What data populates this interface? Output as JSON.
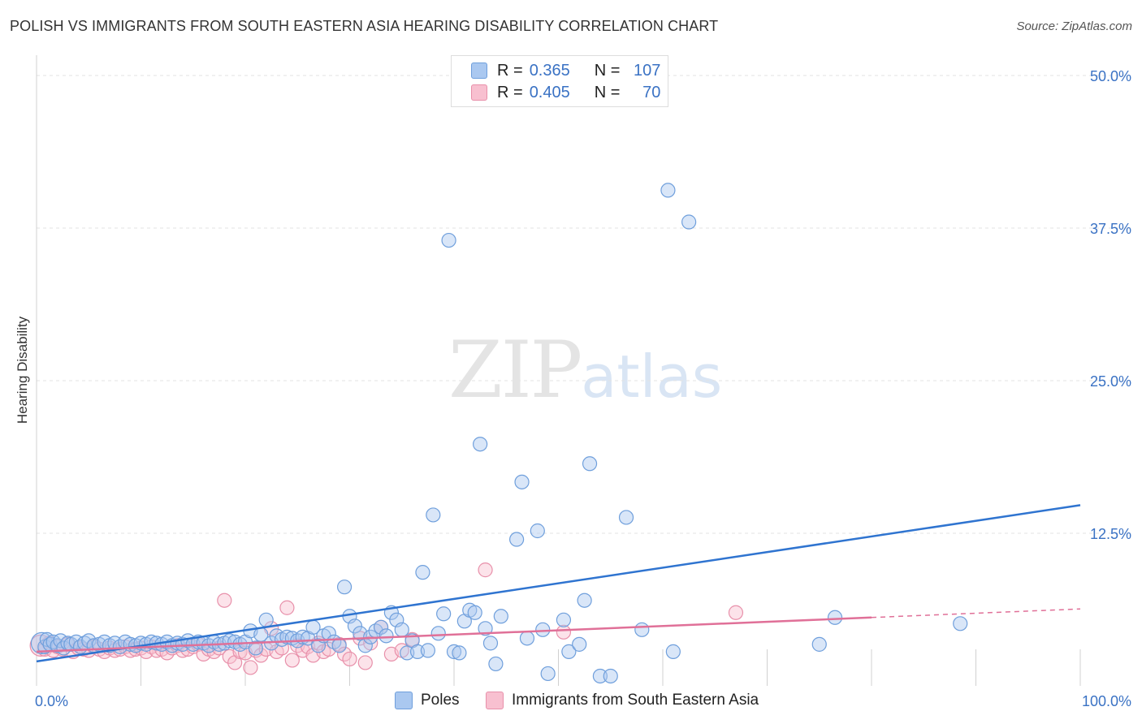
{
  "header": {
    "title": "POLISH VS IMMIGRANTS FROM SOUTH EASTERN ASIA HEARING DISABILITY CORRELATION CHART",
    "source": "Source: ZipAtlas.com"
  },
  "watermark": {
    "zip": "ZIP",
    "atlas": "atlas"
  },
  "legend": {
    "rows": [
      {
        "r_label": "R =",
        "r_value": "0.365",
        "n_label": "N =",
        "n_value": "107",
        "fill": "#aac8f0",
        "stroke": "#6f9fdc"
      },
      {
        "r_label": "R =",
        "r_value": "0.405",
        "n_label": "N =",
        "n_value": "70",
        "fill": "#f8c0d0",
        "stroke": "#e890aa"
      }
    ]
  },
  "colors": {
    "blue_fill": "#aac8f0",
    "blue_stroke": "#6f9fdc",
    "blue_line": "#2f74d0",
    "pink_fill": "#f8c0d0",
    "pink_stroke": "#e890aa",
    "pink_line": "#e07098",
    "grid": "#e3e3e3",
    "tick_label": "#3a72c4"
  },
  "chart_data": {
    "type": "scatter",
    "title": "POLISH VS IMMIGRANTS FROM SOUTH EASTERN ASIA HEARING DISABILITY CORRELATION CHART",
    "xlabel": "",
    "ylabel": "Hearing Disability",
    "xlim": [
      0,
      100
    ],
    "ylim": [
      0,
      51
    ],
    "x_tick_labels": [
      "0.0%",
      "100.0%"
    ],
    "y_ticks": [
      12.5,
      25,
      37.5,
      50
    ],
    "y_tick_labels": [
      "12.5%",
      "25.0%",
      "37.5%",
      "50.0%"
    ],
    "legend_position": "top-center",
    "series": [
      {
        "name": "Poles",
        "trend": {
          "x": [
            0,
            100
          ],
          "y": [
            2.0,
            14.8
          ],
          "dashed_from": null
        },
        "points": [
          [
            0.5,
            3.5
          ],
          [
            0.8,
            3.2
          ],
          [
            1.0,
            3.8
          ],
          [
            1.3,
            3.4
          ],
          [
            1.6,
            3.6
          ],
          [
            2.0,
            3.3
          ],
          [
            2.3,
            3.7
          ],
          [
            2.6,
            3.1
          ],
          [
            3.0,
            3.5
          ],
          [
            3.3,
            3.4
          ],
          [
            3.8,
            3.6
          ],
          [
            4.2,
            3.2
          ],
          [
            4.6,
            3.5
          ],
          [
            5.0,
            3.7
          ],
          [
            5.5,
            3.3
          ],
          [
            6.0,
            3.4
          ],
          [
            6.5,
            3.6
          ],
          [
            7.0,
            3.3
          ],
          [
            7.5,
            3.5
          ],
          [
            8.0,
            3.2
          ],
          [
            8.5,
            3.6
          ],
          [
            9.0,
            3.4
          ],
          [
            9.5,
            3.3
          ],
          [
            10.0,
            3.5
          ],
          [
            10.5,
            3.4
          ],
          [
            11.0,
            3.6
          ],
          [
            11.5,
            3.5
          ],
          [
            12.0,
            3.4
          ],
          [
            12.5,
            3.6
          ],
          [
            13.0,
            3.3
          ],
          [
            13.5,
            3.5
          ],
          [
            14.0,
            3.4
          ],
          [
            14.5,
            3.7
          ],
          [
            15.0,
            3.4
          ],
          [
            15.5,
            3.6
          ],
          [
            16.0,
            3.5
          ],
          [
            16.5,
            3.3
          ],
          [
            17.0,
            3.6
          ],
          [
            17.5,
            3.4
          ],
          [
            18.0,
            3.5
          ],
          [
            18.5,
            3.7
          ],
          [
            19.0,
            3.6
          ],
          [
            19.5,
            3.4
          ],
          [
            20.0,
            3.6
          ],
          [
            20.5,
            4.5
          ],
          [
            21.0,
            3.1
          ],
          [
            21.5,
            4.2
          ],
          [
            22.0,
            5.4
          ],
          [
            22.5,
            3.5
          ],
          [
            23.0,
            4.1
          ],
          [
            23.5,
            3.8
          ],
          [
            24.0,
            4.0
          ],
          [
            24.5,
            3.9
          ],
          [
            25.0,
            3.7
          ],
          [
            25.5,
            4.0
          ],
          [
            26.0,
            3.9
          ],
          [
            26.5,
            4.8
          ],
          [
            27.0,
            3.3
          ],
          [
            27.5,
            4.1
          ],
          [
            28.0,
            4.3
          ],
          [
            28.5,
            3.6
          ],
          [
            29.0,
            3.3
          ],
          [
            29.5,
            8.1
          ],
          [
            30.0,
            5.7
          ],
          [
            30.5,
            4.9
          ],
          [
            31.0,
            4.3
          ],
          [
            31.5,
            3.3
          ],
          [
            32.0,
            4.0
          ],
          [
            32.5,
            4.5
          ],
          [
            33.0,
            4.8
          ],
          [
            33.5,
            4.1
          ],
          [
            34.0,
            6.0
          ],
          [
            34.5,
            5.4
          ],
          [
            35.0,
            4.6
          ],
          [
            35.5,
            2.7
          ],
          [
            36.0,
            3.7
          ],
          [
            36.5,
            2.8
          ],
          [
            37.0,
            9.3
          ],
          [
            37.5,
            2.9
          ],
          [
            38.0,
            14.0
          ],
          [
            38.5,
            4.3
          ],
          [
            39.0,
            5.9
          ],
          [
            39.5,
            36.5
          ],
          [
            40.0,
            2.8
          ],
          [
            40.5,
            2.7
          ],
          [
            41.0,
            5.3
          ],
          [
            41.5,
            6.2
          ],
          [
            42.0,
            6.0
          ],
          [
            42.5,
            19.8
          ],
          [
            43.0,
            4.7
          ],
          [
            43.5,
            3.5
          ],
          [
            44.0,
            1.8
          ],
          [
            44.5,
            5.7
          ],
          [
            46.0,
            12.0
          ],
          [
            46.5,
            16.7
          ],
          [
            47.0,
            3.9
          ],
          [
            48.0,
            12.7
          ],
          [
            48.5,
            4.6
          ],
          [
            49.0,
            1.0
          ],
          [
            50.5,
            5.4
          ],
          [
            51.0,
            2.8
          ],
          [
            52.0,
            3.4
          ],
          [
            52.5,
            7.0
          ],
          [
            53.0,
            18.2
          ],
          [
            54.0,
            0.8
          ],
          [
            55.0,
            0.8
          ],
          [
            56.5,
            13.8
          ],
          [
            58.0,
            4.6
          ],
          [
            60.5,
            40.6
          ],
          [
            61.0,
            2.8
          ],
          [
            62.5,
            38.0
          ],
          [
            75.0,
            3.4
          ],
          [
            76.5,
            5.6
          ],
          [
            88.5,
            5.1
          ]
        ]
      },
      {
        "name": "Immigrants from South Eastern Asia",
        "trend": {
          "x": [
            0,
            80,
            100
          ],
          "y": [
            2.8,
            5.6,
            6.3
          ],
          "dashed_from": 80
        },
        "points": [
          [
            0.4,
            3.3
          ],
          [
            0.8,
            3.0
          ],
          [
            1.2,
            3.5
          ],
          [
            1.6,
            2.9
          ],
          [
            2.0,
            3.2
          ],
          [
            2.5,
            3.0
          ],
          [
            3.0,
            3.4
          ],
          [
            3.5,
            2.8
          ],
          [
            4.0,
            3.1
          ],
          [
            4.5,
            3.0
          ],
          [
            5.0,
            2.9
          ],
          [
            5.5,
            3.2
          ],
          [
            6.0,
            3.0
          ],
          [
            6.5,
            2.8
          ],
          [
            7.0,
            3.1
          ],
          [
            7.5,
            2.9
          ],
          [
            8.0,
            3.0
          ],
          [
            8.5,
            3.2
          ],
          [
            9.0,
            2.9
          ],
          [
            9.5,
            3.0
          ],
          [
            10.0,
            3.1
          ],
          [
            10.5,
            2.8
          ],
          [
            11.0,
            3.2
          ],
          [
            11.5,
            2.9
          ],
          [
            12.0,
            3.0
          ],
          [
            12.5,
            2.7
          ],
          [
            13.0,
            3.1
          ],
          [
            13.5,
            3.3
          ],
          [
            14.0,
            2.9
          ],
          [
            14.5,
            3.0
          ],
          [
            15.0,
            3.2
          ],
          [
            15.5,
            3.4
          ],
          [
            16.0,
            2.6
          ],
          [
            16.5,
            3.0
          ],
          [
            17.0,
            2.8
          ],
          [
            17.5,
            3.1
          ],
          [
            18.0,
            7.0
          ],
          [
            18.5,
            2.4
          ],
          [
            19.0,
            1.9
          ],
          [
            19.5,
            2.8
          ],
          [
            20.0,
            2.7
          ],
          [
            20.5,
            1.5
          ],
          [
            21.0,
            2.9
          ],
          [
            21.5,
            2.5
          ],
          [
            22.0,
            3.0
          ],
          [
            22.5,
            4.7
          ],
          [
            23.0,
            2.8
          ],
          [
            23.5,
            3.1
          ],
          [
            24.0,
            6.4
          ],
          [
            24.5,
            2.1
          ],
          [
            25.0,
            3.3
          ],
          [
            25.5,
            2.9
          ],
          [
            26.0,
            3.2
          ],
          [
            26.5,
            2.5
          ],
          [
            27.0,
            3.5
          ],
          [
            27.5,
            2.8
          ],
          [
            28.0,
            3.0
          ],
          [
            29.0,
            3.4
          ],
          [
            29.5,
            2.6
          ],
          [
            30.0,
            2.2
          ],
          [
            31.0,
            3.9
          ],
          [
            31.5,
            1.9
          ],
          [
            32.0,
            3.5
          ],
          [
            33.0,
            4.8
          ],
          [
            34.0,
            2.6
          ],
          [
            35.0,
            2.9
          ],
          [
            36.0,
            3.8
          ],
          [
            43.0,
            9.5
          ],
          [
            50.5,
            4.4
          ],
          [
            67.0,
            6.0
          ]
        ]
      }
    ]
  },
  "bottom_legend": {
    "items": [
      {
        "label": "Poles"
      },
      {
        "label": "Immigrants from South Eastern Asia"
      }
    ]
  }
}
